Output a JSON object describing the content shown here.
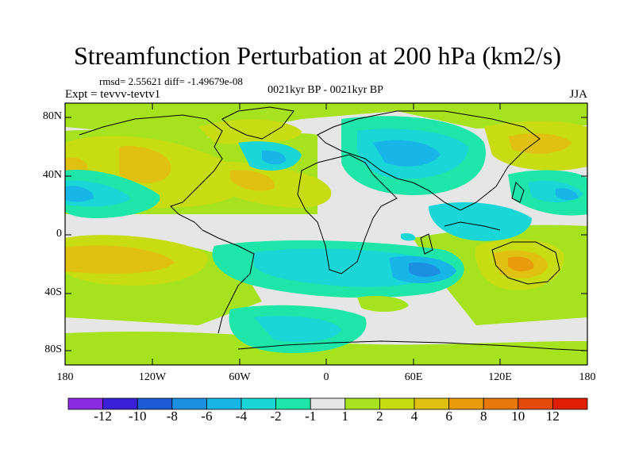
{
  "title": "Streamfunction Perturbation at 200 hPa (km2/s)",
  "stats": "rmsd= 2.55621 diff= -1.49679e-08",
  "expt": "Expt = tevvv-tevtv1",
  "subtitle": "0021kyr BP - 0021kyr BP",
  "season": "JJA",
  "lat_labels": [
    "80N",
    "40N",
    "0",
    "40S",
    "80S"
  ],
  "lon_labels": [
    "180",
    "120W",
    "60W",
    "0",
    "60E",
    "120E",
    "180"
  ],
  "colorbar": {
    "colors": [
      "#8b2be2",
      "#3a20d8",
      "#1f5ad6",
      "#1d8fe0",
      "#18b6e6",
      "#1ad6d6",
      "#1ee5a8",
      "#e6e6e6",
      "#a6e21e",
      "#c8dc14",
      "#e0c010",
      "#e89c0c",
      "#e8780a",
      "#e64a08",
      "#e01e06"
    ],
    "labels": [
      "-12",
      "-10",
      "-8",
      "-6",
      "-4",
      "-2",
      "-1",
      "1",
      "2",
      "4",
      "6",
      "8",
      "10",
      "12"
    ]
  }
}
